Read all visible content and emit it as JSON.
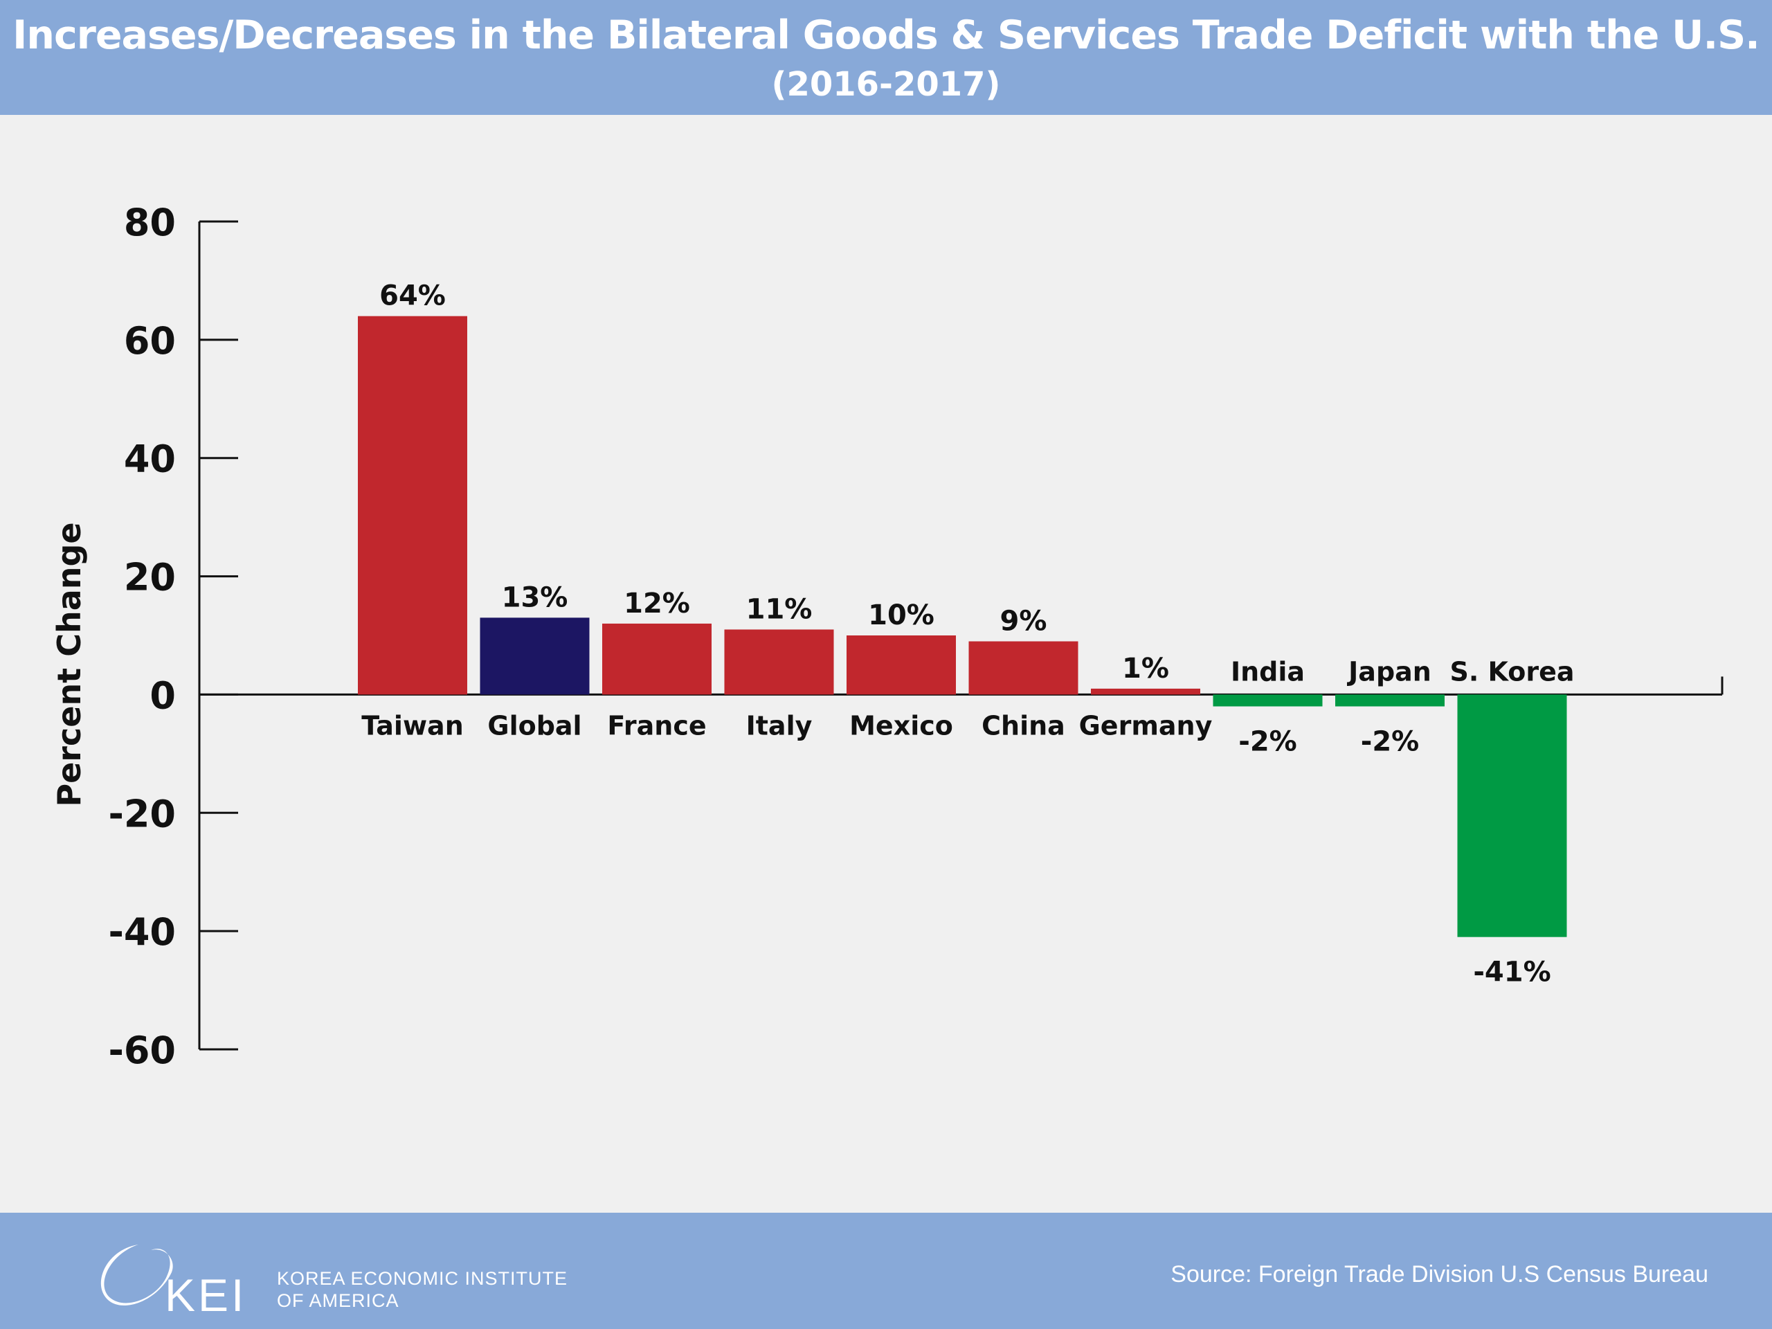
{
  "header": {
    "title": "Increases/Decreases in the Bilateral Goods & Services Trade Deficit with the U.S.",
    "subtitle": "(2016-2017)"
  },
  "footer": {
    "logo_text": "KEI",
    "logo_line1": "KOREA ECONOMIC INSTITUTE",
    "logo_line2": "OF AMERICA",
    "source": "Source: Foreign Trade Division U.S Census Bureau"
  },
  "colors": {
    "increase": "#c1272d",
    "global": "#1c1663",
    "decrease": "#009a44",
    "header_bg": "#88a9d8",
    "background": "#f0f0f0"
  },
  "chart_data": {
    "type": "bar",
    "title": "Increases/Decreases in the Bilateral Goods & Services Trade Deficit with the U.S.",
    "subtitle": "(2016-2017)",
    "xlabel": "",
    "ylabel": "Percent Change",
    "ylim": [
      -60,
      80
    ],
    "yticks": [
      80,
      60,
      40,
      20,
      0,
      -20,
      -40,
      -60
    ],
    "grid": false,
    "categories": [
      "Taiwan",
      "Global",
      "France",
      "Italy",
      "Mexico",
      "China",
      "Germany",
      "India",
      "Japan",
      "S. Korea"
    ],
    "values": [
      64,
      13,
      12,
      11,
      10,
      9,
      1,
      -2,
      -2,
      -41
    ],
    "value_labels": [
      "64%",
      "13%",
      "12%",
      "11%",
      "10%",
      "9%",
      "1%",
      "-2%",
      "-2%",
      "-41%"
    ],
    "bar_colors": [
      "#c1272d",
      "#1c1663",
      "#c1272d",
      "#c1272d",
      "#c1272d",
      "#c1272d",
      "#c1272d",
      "#009a44",
      "#009a44",
      "#009a44"
    ]
  }
}
